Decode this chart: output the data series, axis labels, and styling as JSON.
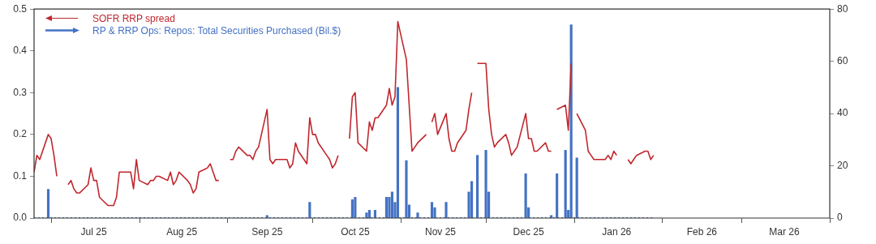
{
  "chart_data": {
    "type": "line",
    "xlim": [
      "2025-06-25",
      "2026-04-01"
    ],
    "xticks": [
      {
        "value": "2025-07-01",
        "label": null
      },
      {
        "value": "2025-07-16",
        "label": "Jul 25"
      },
      {
        "value": "2025-08-01",
        "label": null
      },
      {
        "value": "2025-08-16",
        "label": "Aug 25"
      },
      {
        "value": "2025-09-01",
        "label": null
      },
      {
        "value": "2025-09-15",
        "label": "Sep 25"
      },
      {
        "value": "2025-10-01",
        "label": null
      },
      {
        "value": "2025-10-16",
        "label": "Oct 25"
      },
      {
        "value": "2025-11-01",
        "label": null
      },
      {
        "value": "2025-11-15",
        "label": "Nov 25"
      },
      {
        "value": "2025-12-01",
        "label": null
      },
      {
        "value": "2025-12-16",
        "label": "Dec 25"
      },
      {
        "value": "2026-01-01",
        "label": null
      },
      {
        "value": "2026-01-16",
        "label": "Jan 26"
      },
      {
        "value": "2026-02-01",
        "label": null
      },
      {
        "value": "2026-02-15",
        "label": "Feb 26"
      },
      {
        "value": "2026-03-01",
        "label": null
      },
      {
        "value": "2026-03-16",
        "label": "Mar 26"
      },
      {
        "value": "2026-04-01",
        "label": null
      }
    ],
    "ylim": [
      0,
      0.5
    ],
    "yticks": [
      {
        "value": 0,
        "label": "0.0"
      },
      0.1,
      0.2,
      0.3,
      0.4,
      0.5
    ],
    "y2lim": [
      0,
      80
    ],
    "y2ticks": [
      0,
      20,
      40,
      60,
      80
    ],
    "legend": "top left",
    "ref_lines": [
      {
        "axis": "y",
        "value": 0,
        "color": "#4472c4",
        "line_style": "dotted"
      }
    ],
    "series": [
      {
        "name": "SOFR RRP spread",
        "axis": "y",
        "color": "#c0272d",
        "x": [
          "2025-06-25",
          "2025-06-26",
          "2025-06-27",
          "2025-06-30",
          "2025-07-01",
          "2025-07-02",
          "2025-07-03",
          "2025-07-04",
          "2025-07-07",
          "2025-07-08",
          "2025-07-09",
          "2025-07-10",
          "2025-07-11",
          "2025-07-14",
          "2025-07-15",
          "2025-07-16",
          "2025-07-17",
          "2025-07-18",
          "2025-07-21",
          "2025-07-22",
          "2025-07-23",
          "2025-07-24",
          "2025-07-25",
          "2025-07-28",
          "2025-07-29",
          "2025-07-30",
          "2025-07-31",
          "2025-08-01",
          "2025-08-04",
          "2025-08-05",
          "2025-08-06",
          "2025-08-07",
          "2025-08-08",
          "2025-08-11",
          "2025-08-12",
          "2025-08-13",
          "2025-08-14",
          "2025-08-15",
          "2025-08-18",
          "2025-08-19",
          "2025-08-20",
          "2025-08-21",
          "2025-08-22",
          "2025-08-25",
          "2025-08-26",
          "2025-08-27",
          "2025-08-28",
          "2025-08-29",
          "2025-09-01",
          "2025-09-02",
          "2025-09-03",
          "2025-09-04",
          "2025-09-05",
          "2025-09-08",
          "2025-09-09",
          "2025-09-10",
          "2025-09-11",
          "2025-09-12",
          "2025-09-15",
          "2025-09-16",
          "2025-09-17",
          "2025-09-18",
          "2025-09-19",
          "2025-09-22",
          "2025-09-23",
          "2025-09-24",
          "2025-09-25",
          "2025-09-26",
          "2025-09-29",
          "2025-09-30",
          "2025-10-01",
          "2025-10-02",
          "2025-10-03",
          "2025-10-06",
          "2025-10-07",
          "2025-10-08",
          "2025-10-09",
          "2025-10-10",
          "2025-10-13",
          "2025-10-14",
          "2025-10-15",
          "2025-10-16",
          "2025-10-17",
          "2025-10-20",
          "2025-10-21",
          "2025-10-22",
          "2025-10-23",
          "2025-10-24",
          "2025-10-27",
          "2025-10-28",
          "2025-10-29",
          "2025-10-30",
          "2025-10-31",
          "2025-11-03",
          "2025-11-04",
          "2025-11-05",
          "2025-11-06",
          "2025-11-07",
          "2025-11-10",
          "2025-11-11",
          "2025-11-12",
          "2025-11-13",
          "2025-11-14",
          "2025-11-17",
          "2025-11-18",
          "2025-11-19",
          "2025-11-20",
          "2025-11-21",
          "2025-11-24",
          "2025-11-25",
          "2025-11-26",
          "2025-11-27",
          "2025-11-28",
          "2025-12-01",
          "2025-12-02",
          "2025-12-03",
          "2025-12-04",
          "2025-12-05",
          "2025-12-08",
          "2025-12-09",
          "2025-12-10",
          "2025-12-11",
          "2025-12-12",
          "2025-12-15",
          "2025-12-16",
          "2025-12-17",
          "2025-12-18",
          "2025-12-19",
          "2025-12-22",
          "2025-12-23",
          "2025-12-24",
          "2025-12-25",
          "2025-12-26",
          "2025-12-29",
          "2025-12-30",
          "2025-12-31",
          "2026-01-01",
          "2026-01-02",
          "2026-01-05",
          "2026-01-06",
          "2026-01-07",
          "2026-01-08",
          "2026-01-09",
          "2026-01-12",
          "2026-01-13",
          "2026-01-14",
          "2026-01-15",
          "2026-01-16",
          "2026-01-19",
          "2026-01-20",
          "2026-01-21",
          "2026-01-22",
          "2026-01-23",
          "2026-01-26",
          "2026-01-27",
          "2026-01-28",
          "2026-01-29"
        ],
        "values": [
          0.11,
          0.15,
          0.14,
          0.2,
          0.19,
          0.15,
          0.1,
          null,
          0.08,
          0.09,
          0.07,
          0.06,
          0.06,
          0.08,
          0.12,
          0.09,
          0.09,
          0.05,
          0.03,
          0.03,
          0.03,
          0.05,
          0.11,
          0.11,
          0.11,
          0.07,
          0.14,
          0.09,
          0.08,
          0.09,
          0.09,
          0.1,
          0.1,
          0.09,
          0.11,
          0.08,
          0.09,
          0.11,
          0.09,
          0.08,
          0.06,
          0.07,
          0.11,
          0.12,
          0.13,
          0.11,
          0.09,
          0.09,
          null,
          0.14,
          0.14,
          0.16,
          0.17,
          0.15,
          0.15,
          0.14,
          0.16,
          0.17,
          0.26,
          0.14,
          0.13,
          0.14,
          0.14,
          0.14,
          0.12,
          0.13,
          0.18,
          0.16,
          0.13,
          0.24,
          0.2,
          0.2,
          0.18,
          0.15,
          0.14,
          0.12,
          0.13,
          0.15,
          null,
          0.19,
          0.29,
          0.3,
          0.18,
          0.16,
          0.23,
          0.21,
          0.24,
          0.24,
          0.27,
          0.31,
          0.27,
          0.29,
          0.47,
          0.38,
          0.27,
          0.16,
          0.17,
          0.18,
          0.2,
          null,
          0.23,
          0.25,
          0.2,
          0.25,
          0.19,
          0.16,
          0.16,
          0.18,
          0.21,
          0.26,
          0.3,
          null,
          0.37,
          0.37,
          0.26,
          0.2,
          0.17,
          0.18,
          0.2,
          0.18,
          0.15,
          0.16,
          0.17,
          0.25,
          0.19,
          0.19,
          0.16,
          0.16,
          0.18,
          0.16,
          0.16,
          null,
          0.26,
          0.27,
          0.21,
          0.37,
          null,
          0.25,
          0.21,
          0.16,
          0.15,
          0.14,
          0.14,
          0.14,
          0.15,
          0.14,
          0.16,
          0.15,
          null,
          0.14,
          0.13,
          0.14,
          0.15,
          0.16,
          0.16,
          0.14,
          0.15
        ]
      },
      {
        "name": "RP & RRP Ops: Repos: Total Securities Purchased (Bil.$)",
        "type": "bar",
        "axis": "y2",
        "color": "#4472c4",
        "x": [
          "2025-06-30",
          "2025-09-15",
          "2025-09-30",
          "2025-10-15",
          "2025-10-16",
          "2025-10-20",
          "2025-10-21",
          "2025-10-23",
          "2025-10-27",
          "2025-10-28",
          "2025-10-29",
          "2025-10-30",
          "2025-10-31",
          "2025-11-03",
          "2025-11-04",
          "2025-11-07",
          "2025-11-12",
          "2025-11-13",
          "2025-11-17",
          "2025-11-25",
          "2025-11-26",
          "2025-11-28",
          "2025-12-01",
          "2025-12-02",
          "2025-12-15",
          "2025-12-16",
          "2025-12-24",
          "2025-12-26",
          "2025-12-29",
          "2025-12-30",
          "2025-12-31",
          "2026-01-02"
        ],
        "values": [
          11,
          1,
          6,
          7,
          8,
          2,
          3,
          3,
          8,
          8,
          10,
          6,
          50,
          22,
          5,
          2,
          6,
          4,
          6,
          10,
          14,
          24,
          26,
          10,
          17,
          4,
          1,
          17,
          26,
          3,
          74,
          23
        ]
      }
    ]
  }
}
